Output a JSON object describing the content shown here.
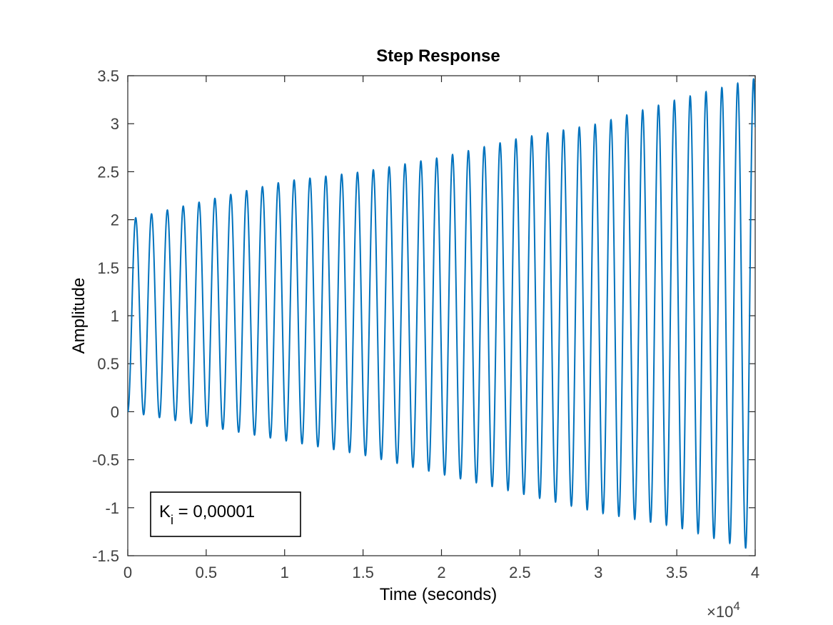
{
  "chart_data": {
    "type": "line",
    "title": "Step Response",
    "xlabel": "Time (seconds)",
    "ylabel": "Amplitude",
    "xlim": [
      0,
      40000
    ],
    "ylim": [
      -1.5,
      3.5
    ],
    "x_ticks": [
      0,
      5000,
      10000,
      15000,
      20000,
      25000,
      30000,
      35000,
      40000
    ],
    "x_tick_labels": [
      "0",
      "0.5",
      "1",
      "1.5",
      "2",
      "2.5",
      "3",
      "3.5",
      "4"
    ],
    "y_ticks": [
      -1.5,
      -1,
      -0.5,
      0,
      0.5,
      1,
      1.5,
      2,
      2.5,
      3,
      3.5
    ],
    "y_tick_labels": [
      "-1.5",
      "-1",
      "-0.5",
      "0",
      "0.5",
      "1",
      "1.5",
      "2",
      "2.5",
      "3",
      "3.5"
    ],
    "x_exponent": {
      "base": "×10",
      "power": "4"
    },
    "grid": false,
    "line_color": "#0072BD",
    "series": [
      {
        "sampled_every": "5000",
        "x": [
          0,
          5000,
          10000,
          15000,
          20000,
          25000,
          30000,
          35000,
          40000
        ],
        "peak_values": [
          2.0,
          2.2,
          2.4,
          2.5,
          2.65,
          2.85,
          3.0,
          3.25,
          3.47
        ],
        "trough_values": [
          0.0,
          -0.15,
          -0.3,
          -0.45,
          -0.65,
          -0.85,
          -1.05,
          -1.2,
          -1.45
        ]
      }
    ],
    "oscillation": {
      "first_peak_x": 500,
      "period": 1010
    },
    "annotation": {
      "label_main": "K",
      "label_sub": "i",
      "label_rest": " = 0,00001"
    }
  }
}
